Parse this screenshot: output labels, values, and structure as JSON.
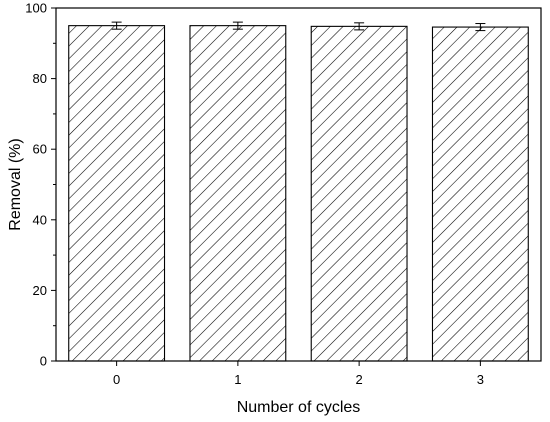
{
  "chart_data": {
    "type": "bar",
    "categories": [
      "0",
      "1",
      "2",
      "3"
    ],
    "values": [
      95.0,
      95.0,
      94.8,
      94.6
    ],
    "errors": [
      1.0,
      1.0,
      1.0,
      1.0
    ],
    "xlabel": "Number of cycles",
    "ylabel": "Removal (%)",
    "ylim": [
      0,
      100
    ],
    "yticks": [
      "0",
      "20",
      "40",
      "60",
      "80",
      "100"
    ],
    "grid": false,
    "bar_fill": "diagonal-hatch",
    "bar_color": "#000000"
  }
}
